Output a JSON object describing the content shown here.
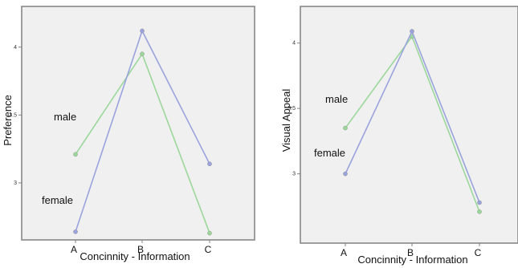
{
  "chart_data": [
    {
      "type": "line",
      "xlabel": "Concinnity - Information",
      "ylabel": "Preference",
      "categories": [
        "A",
        "B",
        "C"
      ],
      "yticks": [
        "3",
        "3.5",
        "4"
      ],
      "ylim": [
        2.58,
        4.3
      ],
      "series": [
        {
          "name": "male",
          "color": "#9bd79b",
          "values": [
            3.21,
            3.95,
            2.63
          ]
        },
        {
          "name": "female",
          "color": "#9aa3dc",
          "values": [
            2.64,
            4.12,
            3.14
          ]
        }
      ],
      "annotations": [
        {
          "text": "male",
          "series": "male"
        },
        {
          "text": "female",
          "series": "female"
        }
      ]
    },
    {
      "type": "line",
      "xlabel": "Concinnity - Information",
      "ylabel": "Visual Appeal",
      "categories": [
        "A",
        "B",
        "C"
      ],
      "yticks": [
        "3",
        "3.5",
        "4"
      ],
      "ylim": [
        2.47,
        4.28
      ],
      "series": [
        {
          "name": "male",
          "color": "#9bd79b",
          "values": [
            3.35,
            4.05,
            2.71
          ]
        },
        {
          "name": "female",
          "color": "#9aa3dc",
          "values": [
            3.0,
            4.09,
            2.78
          ]
        }
      ],
      "annotations": [
        {
          "text": "male",
          "series": "male"
        },
        {
          "text": "female",
          "series": "female"
        }
      ]
    }
  ]
}
